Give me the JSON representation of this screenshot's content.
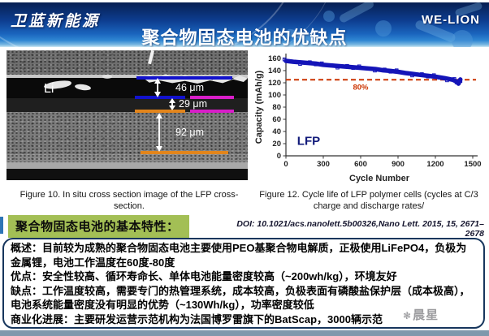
{
  "header": {
    "logo": "卫蓝新能源",
    "title": "聚合物固态电池的优缺点",
    "brand": "WE-LION"
  },
  "left_figure": {
    "li_label": "Li",
    "m46": "46 μm",
    "m29": "29 μm",
    "m92": "92 μm",
    "caption": "Figure 10. In situ cross section image of the LFP cross-section."
  },
  "right_figure": {
    "caption": "Figure 12. Cycle life of LFP polymer cells (cycles at C/3 charge and discharge rates/",
    "doi": "DOI: 10.1021/acs.nanolett.5b00326,Nano Lett. 2015, 15, 2671–2678"
  },
  "section_label": "聚合物固态电池的基本特性：",
  "bullets": [
    {
      "label": "概述：",
      "text": "目前较为成熟的聚合物固态电池主要使用PEO基聚合物电解质，正极使用LiFePO4，负极为金属锂，电池工作温度在60度-80度"
    },
    {
      "label": "优点：",
      "text": "安全性较高、循环寿命长、单体电池能量密度较高（~200wh/kg），环境友好"
    },
    {
      "label": "缺点：",
      "text": "工作温度较高，需要专门的热管理系统，成本较高，负极表面有磷酸盐保护层（成本极高），电池系统能量密度没有明显的优势（~130Wh/kg），功率密度较低"
    },
    {
      "label": "商业化进展：",
      "text": "主要研发运营示范机构为法国博罗雷旗下的BatScap，3000辆示范"
    }
  ],
  "watermark": {
    "text": "晨星"
  },
  "chart_data": {
    "type": "scatter",
    "title": "",
    "xlabel": "Cycle Number",
    "ylabel": "Capacity (mAh/g)",
    "xlim": [
      0,
      1500
    ],
    "ylim": [
      0,
      160
    ],
    "xticks": [
      0,
      300,
      600,
      900,
      1200,
      1500
    ],
    "yticks": [
      0,
      20,
      40,
      60,
      80,
      100,
      120,
      140,
      160
    ],
    "grid": false,
    "legend": "none",
    "series": [
      {
        "name": "LFP",
        "color": "#1414b8",
        "x": [
          0,
          60,
          120,
          180,
          240,
          300,
          360,
          420,
          480,
          540,
          600,
          660,
          720,
          780,
          840,
          900,
          960,
          1020,
          1080,
          1140,
          1200,
          1260,
          1300,
          1340,
          1370,
          1385,
          1395,
          1400
        ],
        "y": [
          156,
          154.5,
          153.5,
          152.5,
          151.5,
          149.5,
          148.5,
          147.5,
          146.5,
          145.5,
          144.5,
          143.5,
          142.5,
          140.5,
          139.5,
          138,
          136,
          134.5,
          133,
          131.5,
          130,
          128,
          126.5,
          125,
          122,
          118.5,
          123,
          125.5
        ]
      }
    ],
    "annotations": [
      {
        "type": "hline",
        "y": 125,
        "color": "#cc3300",
        "style": "dashed",
        "label": "80%",
        "label_x": 600
      }
    ]
  }
}
